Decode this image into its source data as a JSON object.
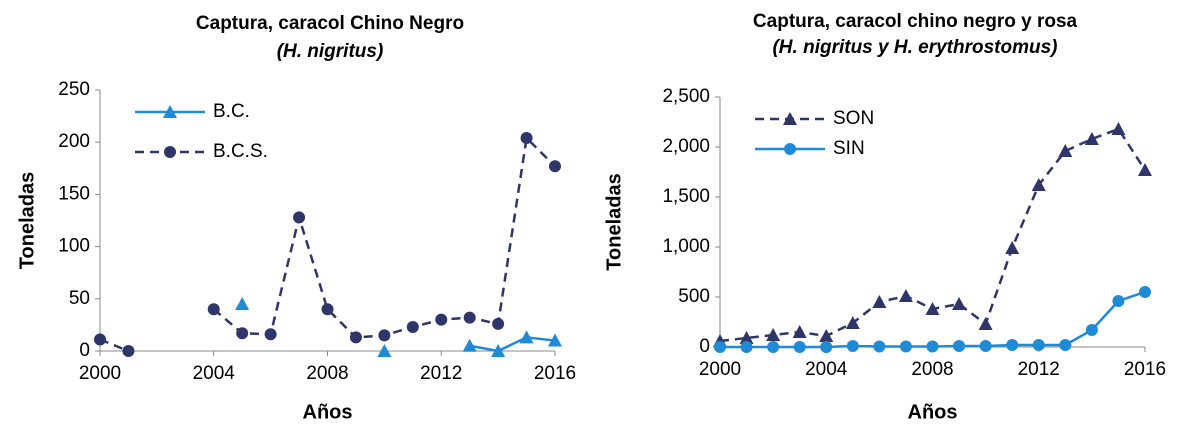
{
  "chart_data": [
    {
      "type": "line",
      "title": "Captura, caracol Chino Negro",
      "subtitle": "(H. nigritus)",
      "xlabel": "Años",
      "ylabel": "Toneladas",
      "x": [
        2000,
        2001,
        2002,
        2003,
        2004,
        2005,
        2006,
        2007,
        2008,
        2009,
        2010,
        2011,
        2012,
        2013,
        2014,
        2015,
        2016
      ],
      "xlim": [
        2000,
        2016
      ],
      "xticks": [
        2000,
        2004,
        2008,
        2012,
        2016
      ],
      "ylim": [
        0,
        250
      ],
      "yticks": [
        0,
        50,
        100,
        150,
        200,
        250
      ],
      "legend": "upper left",
      "series": [
        {
          "name": "B.C.",
          "color": "#1f8ad6",
          "marker": "triangle",
          "dash": "solid",
          "values": [
            null,
            null,
            null,
            null,
            null,
            45,
            null,
            null,
            null,
            null,
            0,
            null,
            null,
            5,
            0,
            13,
            10
          ]
        },
        {
          "name": "B.C.S.",
          "color": "#2e3569",
          "marker": "circle",
          "dash": "dashed",
          "values": [
            11,
            0,
            null,
            null,
            40,
            17,
            16,
            128,
            40,
            13,
            15,
            23,
            30,
            32,
            26,
            204,
            177
          ]
        }
      ]
    },
    {
      "type": "line",
      "title": "Captura, caracol chino negro y rosa",
      "subtitle": "(H. nigritus y H. erythrostomus)",
      "xlabel": "Años",
      "ylabel": "Toneladas",
      "x": [
        2000,
        2001,
        2002,
        2003,
        2004,
        2005,
        2006,
        2007,
        2008,
        2009,
        2010,
        2011,
        2012,
        2013,
        2014,
        2015,
        2016
      ],
      "xlim": [
        2000,
        2016
      ],
      "xticks": [
        2000,
        2004,
        2008,
        2012,
        2016
      ],
      "ylim": [
        0,
        2500
      ],
      "yticks": [
        0,
        500,
        {
          "value": 1000,
          "label": "1,000"
        },
        {
          "value": 1500,
          "label": "1,500"
        },
        {
          "value": 2000,
          "label": "2,000"
        },
        {
          "value": 2500,
          "label": "2,500"
        }
      ],
      "legend": "upper left",
      "series": [
        {
          "name": "SON",
          "color": "#2e3569",
          "marker": "triangle",
          "dash": "dashed",
          "values": [
            60,
            90,
            120,
            150,
            110,
            240,
            450,
            510,
            380,
            430,
            230,
            990,
            1620,
            1960,
            2080,
            2180,
            1770
          ]
        },
        {
          "name": "SIN",
          "color": "#1f8ad6",
          "marker": "circle",
          "dash": "solid",
          "values": [
            0,
            0,
            0,
            0,
            0,
            10,
            5,
            5,
            5,
            10,
            10,
            20,
            20,
            20,
            170,
            460,
            550
          ]
        }
      ]
    }
  ]
}
